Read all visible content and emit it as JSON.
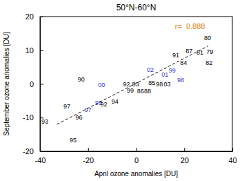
{
  "chart_data": {
    "type": "scatter",
    "marker": "text",
    "title": "50°N-60°N",
    "xlabel": "April ozone anomalies [DU]",
    "ylabel": "September ozone anomalies [DU]",
    "xlim": [
      -40,
      40
    ],
    "ylim": [
      -20,
      20
    ],
    "xticks": [
      -40,
      -20,
      0,
      20,
      40
    ],
    "yticks": [
      -20,
      -10,
      0,
      10,
      20
    ],
    "x": [
      29.7,
      22,
      26.5,
      30.6,
      16.5,
      19.7,
      30.3,
      5.9,
      12,
      15,
      -22.9,
      -14.4,
      -4,
      -0.3,
      6.5,
      9.7,
      1.8,
      4.7,
      -2.4,
      12.9,
      18.5,
      -8.8,
      -15.6,
      -13.5,
      -28.8,
      -20,
      -23.8,
      -38,
      -26.2
    ],
    "values": [
      13.6,
      9.7,
      9.3,
      9.5,
      8.5,
      6.2,
      6.2,
      4.3,
      2.7,
      3.9,
      1.4,
      -0.4,
      -0.2,
      0,
      0.4,
      0,
      -2.1,
      -2.1,
      -1.9,
      0,
      1.2,
      -5.2,
      -5.6,
      -6,
      -6.6,
      -7.6,
      -9.9,
      -11.1,
      -16.7
    ],
    "labels": [
      "80",
      "87",
      "81",
      "79",
      "91",
      "84",
      "82",
      "02",
      "01",
      "99",
      "90",
      "00",
      "92",
      "83",
      "85",
      "98",
      "86",
      "88",
      "99",
      "03",
      "98",
      "94",
      "95",
      "92",
      "97",
      "97",
      "96",
      "93",
      "95"
    ],
    "colors": [
      "#000000",
      "#000000",
      "#000000",
      "#000000",
      "#000000",
      "#000000",
      "#000000",
      "#3c3cc8",
      "#3c3cc8",
      "#3c3cc8",
      "#000000",
      "#3c3cc8",
      "#000000",
      "#000000",
      "#000000",
      "#000000",
      "#000000",
      "#000000",
      "#000000",
      "#000000",
      "#3c3cc8",
      "#000000",
      "#3c3cc8",
      "#000000",
      "#000000",
      "#3c3cc8",
      "#000000",
      "#000000",
      "#000000"
    ],
    "fit": {
      "x": [
        -33,
        30
      ],
      "y": [
        -12,
        11.3
      ],
      "line_style": "dashed"
    },
    "annotations": [
      {
        "text": "r=  0.888",
        "color": "#e08020"
      }
    ]
  }
}
